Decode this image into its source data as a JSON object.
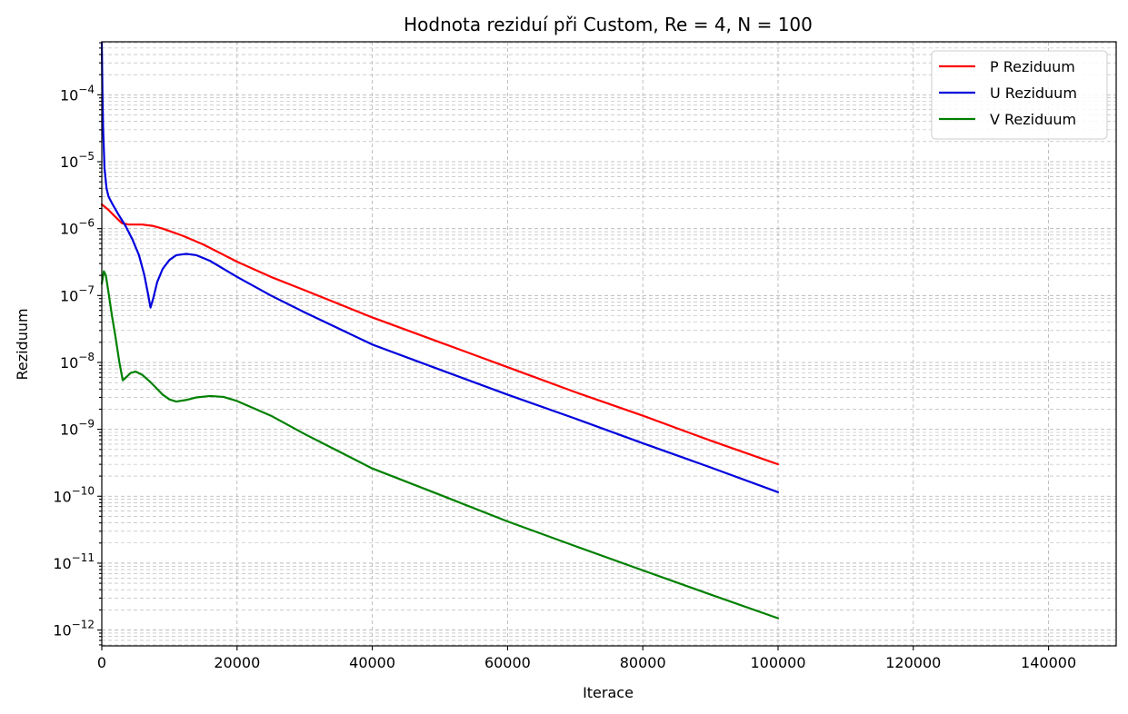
{
  "chart_data": {
    "type": "line",
    "title": "Hodnota reziduí při Custom, Re = 4, N = 100",
    "xlabel": "Iterace",
    "ylabel": "Reziduum",
    "xlim": [
      0,
      150000
    ],
    "ylim": [
      5.8e-13,
      0.00062
    ],
    "yscale": "log",
    "grid": "both, dashed",
    "legend_position": "top-right",
    "x_ticks": [
      0,
      20000,
      40000,
      60000,
      80000,
      100000,
      120000,
      140000
    ],
    "x_tick_labels": [
      "0",
      "20000",
      "40000",
      "60000",
      "80000",
      "100000",
      "120000",
      "140000"
    ],
    "y_ticks": [
      {
        "value": 1e-12,
        "base": "10",
        "exp": "−12"
      },
      {
        "value": 1e-11,
        "base": "10",
        "exp": "−11"
      },
      {
        "value": 1e-10,
        "base": "10",
        "exp": "−10"
      },
      {
        "value": 1e-09,
        "base": "10",
        "exp": "−9"
      },
      {
        "value": 1e-08,
        "base": "10",
        "exp": "−8"
      },
      {
        "value": 1e-07,
        "base": "10",
        "exp": "−7"
      },
      {
        "value": 1e-06,
        "base": "10",
        "exp": "−6"
      },
      {
        "value": 1e-05,
        "base": "10",
        "exp": "−5"
      },
      {
        "value": 0.0001,
        "base": "10",
        "exp": "−4"
      }
    ],
    "series": [
      {
        "name": "P Reziduum",
        "color": "#ff0000",
        "points": [
          [
            0,
            2.3e-06
          ],
          [
            1000,
            1.9e-06
          ],
          [
            2000,
            1.5e-06
          ],
          [
            3000,
            1.2e-06
          ],
          [
            4000,
            1.15e-06
          ],
          [
            6000,
            1.15e-06
          ],
          [
            7500,
            1.1e-06
          ],
          [
            9000,
            1e-06
          ],
          [
            12000,
            7.8e-07
          ],
          [
            15000,
            5.8e-07
          ],
          [
            20000,
            3.2e-07
          ],
          [
            25000,
            1.9e-07
          ],
          [
            30000,
            1.2e-07
          ],
          [
            40000,
            4.7e-08
          ],
          [
            50000,
            2e-08
          ],
          [
            60000,
            8.5e-09
          ],
          [
            70000,
            3.6e-09
          ],
          [
            80000,
            1.6e-09
          ],
          [
            90000,
            6.8e-10
          ],
          [
            100000,
            3e-10
          ]
        ]
      },
      {
        "name": "U Reziduum",
        "color": "#0000dd",
        "points": [
          [
            0,
            0.0006
          ],
          [
            100,
            0.0001
          ],
          [
            200,
            3e-05
          ],
          [
            400,
            8e-06
          ],
          [
            700,
            4e-06
          ],
          [
            1000,
            3e-06
          ],
          [
            1500,
            2.4e-06
          ],
          [
            2500,
            1.6e-06
          ],
          [
            3500,
            1.1e-06
          ],
          [
            4500,
            7e-07
          ],
          [
            5500,
            4e-07
          ],
          [
            6300,
            2e-07
          ],
          [
            6800,
            1.1e-07
          ],
          [
            7200,
            6.6e-08
          ],
          [
            7600,
            9e-08
          ],
          [
            8200,
            1.6e-07
          ],
          [
            9000,
            2.5e-07
          ],
          [
            10000,
            3.4e-07
          ],
          [
            11000,
            4e-07
          ],
          [
            12500,
            4.2e-07
          ],
          [
            14000,
            4e-07
          ],
          [
            16000,
            3.3e-07
          ],
          [
            20000,
            1.9e-07
          ],
          [
            25000,
            1e-07
          ],
          [
            30000,
            5.6e-08
          ],
          [
            40000,
            1.85e-08
          ],
          [
            50000,
            7.8e-09
          ],
          [
            60000,
            3.3e-09
          ],
          [
            70000,
            1.45e-09
          ],
          [
            80000,
            6.2e-10
          ],
          [
            90000,
            2.7e-10
          ],
          [
            100000,
            1.15e-10
          ]
        ]
      },
      {
        "name": "V Reziduum",
        "color": "#008000",
        "points": [
          [
            0,
            1.5e-07
          ],
          [
            300,
            2.3e-07
          ],
          [
            600,
            2e-07
          ],
          [
            1000,
            1.1e-07
          ],
          [
            1500,
            5e-08
          ],
          [
            2000,
            2.5e-08
          ],
          [
            2600,
            1e-08
          ],
          [
            3100,
            5.4e-09
          ],
          [
            3600,
            6e-09
          ],
          [
            4300,
            7e-09
          ],
          [
            5000,
            7.3e-09
          ],
          [
            6000,
            6.5e-09
          ],
          [
            7000,
            5.3e-09
          ],
          [
            8000,
            4.2e-09
          ],
          [
            9000,
            3.3e-09
          ],
          [
            10000,
            2.8e-09
          ],
          [
            11000,
            2.6e-09
          ],
          [
            12500,
            2.75e-09
          ],
          [
            14000,
            3e-09
          ],
          [
            16000,
            3.15e-09
          ],
          [
            18000,
            3.05e-09
          ],
          [
            20000,
            2.65e-09
          ],
          [
            25000,
            1.6e-09
          ],
          [
            30000,
            8.5e-10
          ],
          [
            35000,
            4.7e-10
          ],
          [
            40000,
            2.6e-10
          ],
          [
            50000,
            1.05e-10
          ],
          [
            60000,
            4.2e-11
          ],
          [
            70000,
            1.8e-11
          ],
          [
            80000,
            7.8e-12
          ],
          [
            90000,
            3.4e-12
          ],
          [
            100000,
            1.5e-12
          ]
        ]
      }
    ]
  }
}
